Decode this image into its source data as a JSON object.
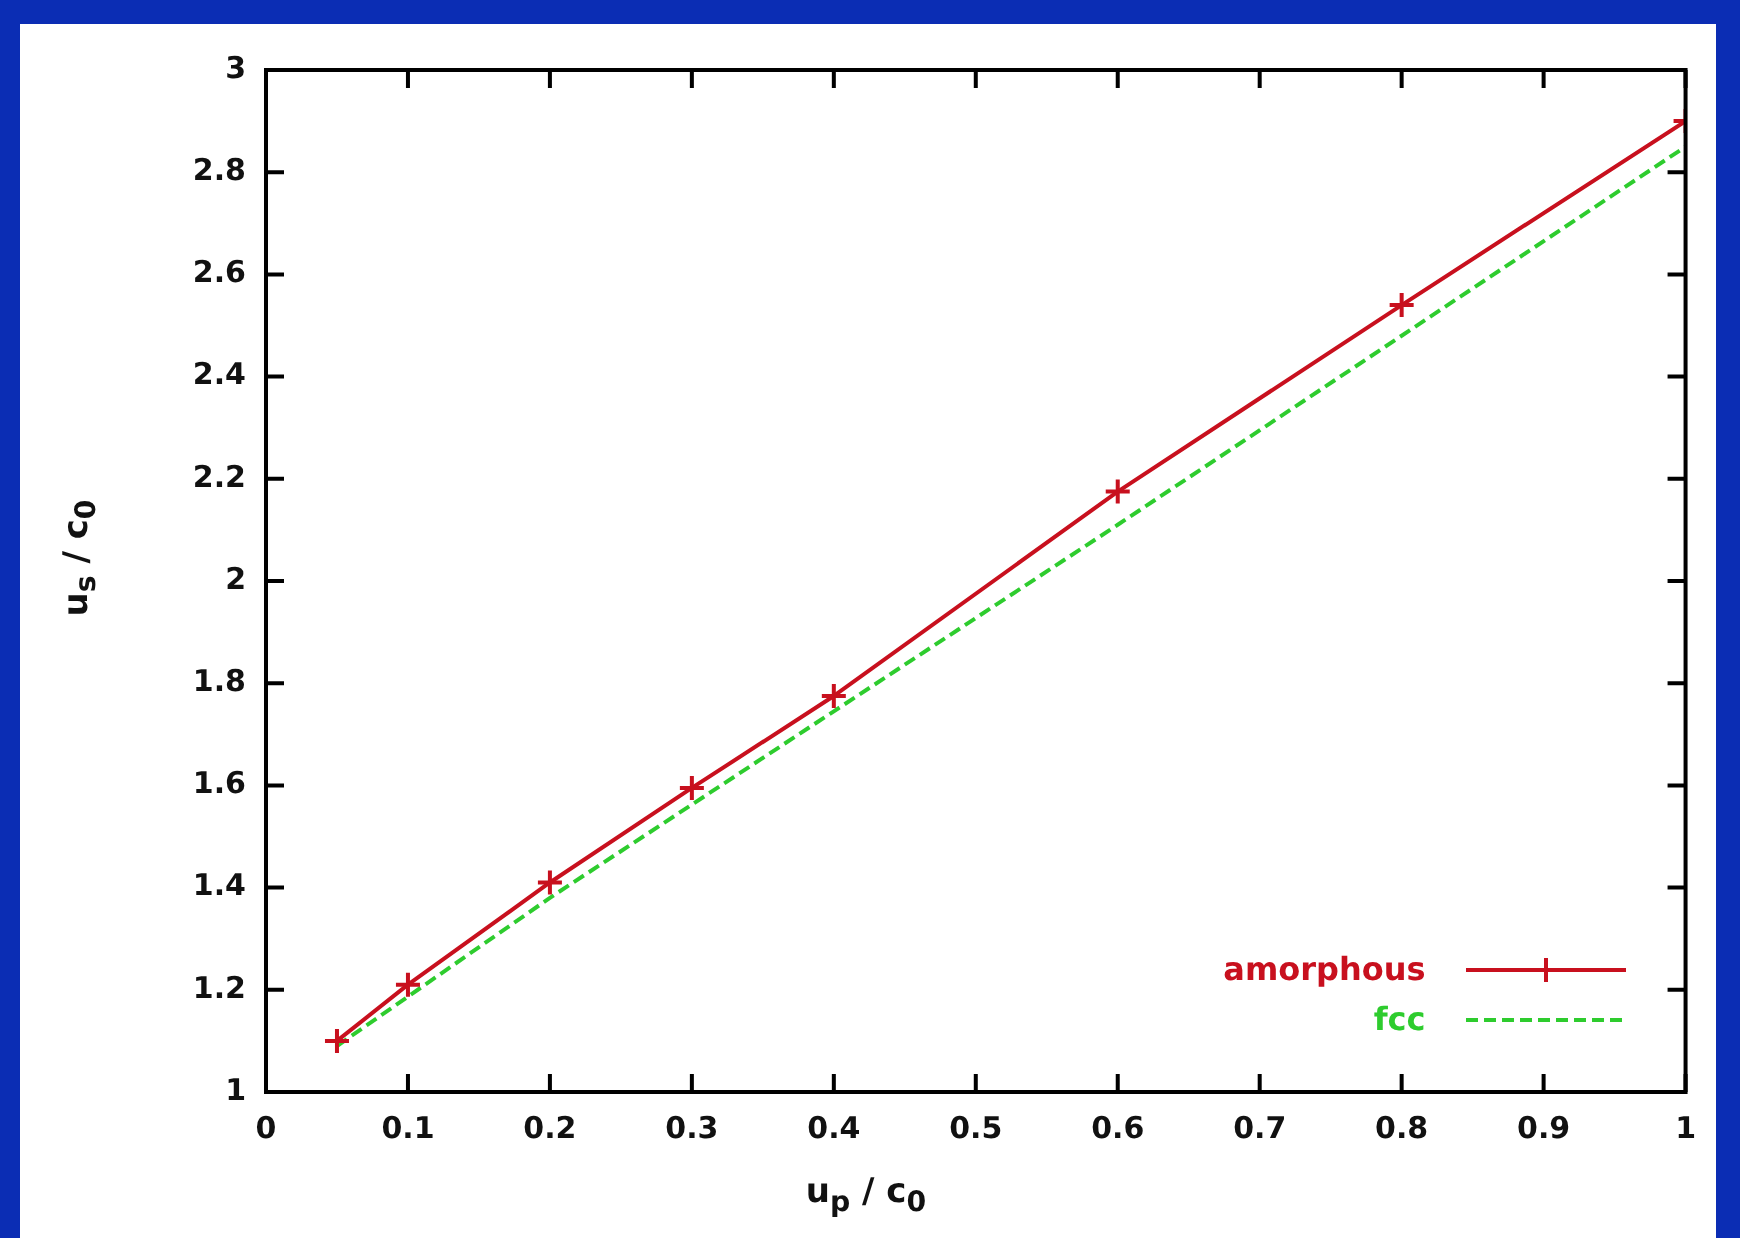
{
  "chart_data": {
    "type": "line",
    "xlabel": "u$_{p}$ / c$_{0}$",
    "ylabel": "u$_{s}$ / c$_{0}$",
    "xlim": [
      0,
      1
    ],
    "xticks": [
      0,
      0.1,
      0.2,
      0.3,
      0.4,
      0.5,
      0.6,
      0.7,
      0.8,
      0.9,
      1
    ],
    "ylim": [
      1,
      3
    ],
    "yticks": [
      1,
      1.2,
      1.4,
      1.6,
      1.8,
      2,
      2.2,
      2.4,
      2.6,
      2.8,
      3
    ],
    "grid": false,
    "legend": "bottom right",
    "series": [
      {
        "name": "amorphous",
        "color": "#c8101e",
        "marker": "cross",
        "line_style": "solid",
        "x": [
          0.05,
          0.1,
          0.2,
          0.3,
          0.4,
          0.6,
          0.8,
          1.0
        ],
        "values": [
          1.1,
          1.21,
          1.41,
          1.595,
          1.775,
          2.175,
          2.54,
          2.9
        ]
      },
      {
        "name": "fcc",
        "color": "#2ecc2e",
        "marker": "none",
        "line_style": "dashed",
        "x": [
          0.05,
          0.2,
          0.4,
          0.6,
          0.8,
          1.0
        ],
        "values": [
          1.09,
          1.38,
          1.745,
          2.11,
          2.48,
          2.85
        ]
      }
    ]
  }
}
